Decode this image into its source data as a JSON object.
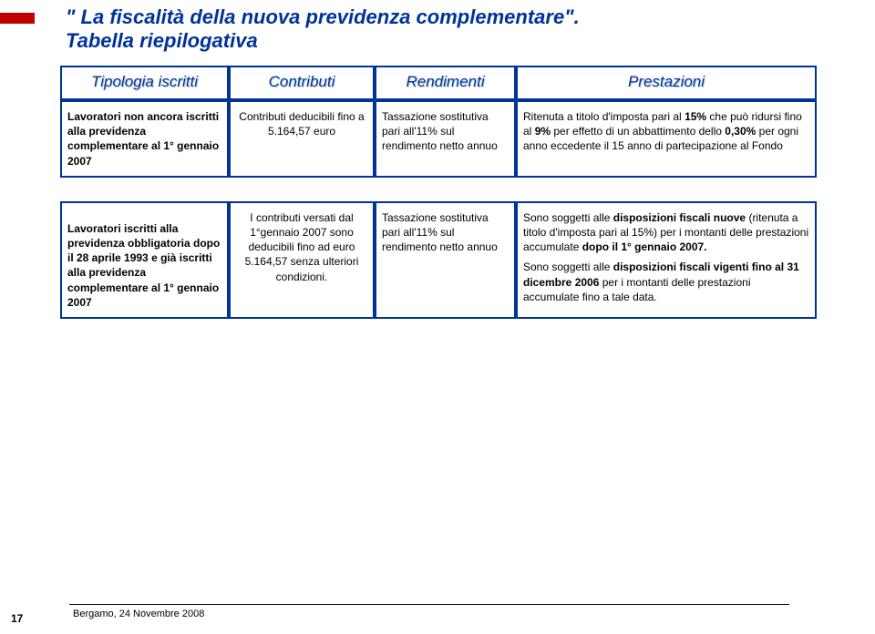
{
  "title": "\" La fiscalità della nuova previdenza complementare\".",
  "subtitle": "Tabella riepilogativa",
  "headers": [
    "Tipologia iscritti",
    "Contributi",
    "Rendimenti",
    "Prestazioni"
  ],
  "rows": [
    {
      "label": "Lavoratori non ancora iscritti alla previdenza complementare al 1° gennaio 2007",
      "contributi": "Contributi deducibili fino a 5.164,57 euro",
      "rendimenti": "Tassazione sostitutiva pari all'11% sul rendimento netto annuo",
      "prestazioni_html": "Ritenuta a titolo d'imposta pari al <b>15%</b> che può ridursi fino al <b>9%</b> per effetto di un abbattimento dello <b>0,30%</b> per ogni anno eccedente il 15 anno di partecipazione al Fondo"
    },
    {
      "label": "Lavoratori iscritti alla previdenza obbligatoria dopo il 28 aprile 1993 e già iscritti alla previdenza complementare al 1° gennaio 2007",
      "contributi": "I contributi versati dal 1°gennaio 2007 sono deducibili fino ad euro 5.164,57 senza ulteriori condizioni.",
      "rendimenti": "Tassazione sostitutiva pari all'11% sul rendimento netto annuo",
      "prestazioni_html": "<p>Sono soggetti alle <b>disposizioni fiscali nuove</b> (ritenuta a titolo d'imposta pari al 15%) per i montanti delle prestazioni accumulate <b>dopo il 1° gennaio 2007.</b></p><p>Sono soggetti alle <b>disposizioni fiscali vigenti fino al 31 dicembre 2006</b> per i montanti delle prestazioni accumulate fino a tale data.</p>"
    }
  ],
  "footer": "Bergamo, 24 Novembre 2008",
  "page": "17",
  "colors": {
    "accent": "#c00000",
    "heading": "#003399",
    "border": "#003399"
  }
}
